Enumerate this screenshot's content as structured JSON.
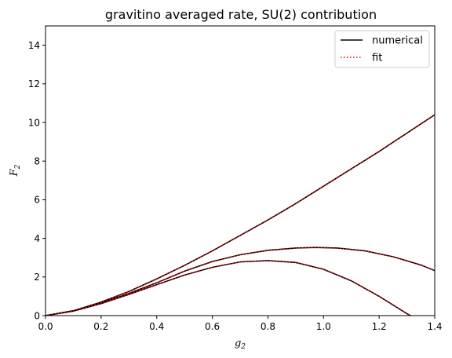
{
  "chart_data": {
    "type": "line",
    "title": "gravitino averaged rate, SU(2) contribution",
    "xlabel_base": "g",
    "xlabel_sub": "2",
    "ylabel_base": "F",
    "ylabel_sub": "2",
    "xlim": [
      0.0,
      1.4
    ],
    "ylim": [
      0,
      15
    ],
    "xticks": [
      0.0,
      0.2,
      0.4,
      0.6,
      0.8,
      1.0,
      1.2,
      1.4
    ],
    "xtick_labels": [
      "0.0",
      "0.2",
      "0.4",
      "0.6",
      "0.8",
      "1.0",
      "1.2",
      "1.4"
    ],
    "yticks": [
      0,
      2,
      4,
      6,
      8,
      10,
      12,
      14
    ],
    "ytick_labels": [
      "0",
      "2",
      "4",
      "6",
      "8",
      "10",
      "12",
      "14"
    ],
    "grid": false,
    "legend_position": "top-right",
    "legend": [
      {
        "label": "numerical",
        "color": "#000000",
        "style": "solid"
      },
      {
        "label": "fit",
        "color": "#ff0000",
        "style": "dotted"
      }
    ],
    "curves": [
      {
        "x": [
          0.0,
          0.1,
          0.2,
          0.3,
          0.4,
          0.5,
          0.6,
          0.7,
          0.8,
          0.9,
          1.0,
          1.1,
          1.2,
          1.3,
          1.4
        ],
        "y": [
          0.0,
          0.25,
          0.7,
          1.25,
          1.9,
          2.6,
          3.35,
          4.15,
          4.95,
          5.8,
          6.7,
          7.6,
          8.5,
          9.45,
          10.4
        ]
      },
      {
        "x": [
          0.0,
          0.1,
          0.2,
          0.3,
          0.4,
          0.5,
          0.6,
          0.7,
          0.8,
          0.9,
          0.97,
          1.05,
          1.15,
          1.25,
          1.35,
          1.4
        ],
        "y": [
          0.0,
          0.25,
          0.65,
          1.15,
          1.7,
          2.3,
          2.8,
          3.15,
          3.38,
          3.5,
          3.53,
          3.5,
          3.35,
          3.05,
          2.62,
          2.33
        ]
      },
      {
        "x": [
          0.0,
          0.1,
          0.2,
          0.3,
          0.4,
          0.5,
          0.6,
          0.7,
          0.8,
          0.9,
          1.0,
          1.1,
          1.2,
          1.25,
          1.3,
          1.32
        ],
        "y": [
          0.0,
          0.23,
          0.62,
          1.1,
          1.6,
          2.1,
          2.5,
          2.78,
          2.85,
          2.75,
          2.4,
          1.8,
          1.0,
          0.55,
          0.1,
          -0.05
        ]
      }
    ]
  }
}
